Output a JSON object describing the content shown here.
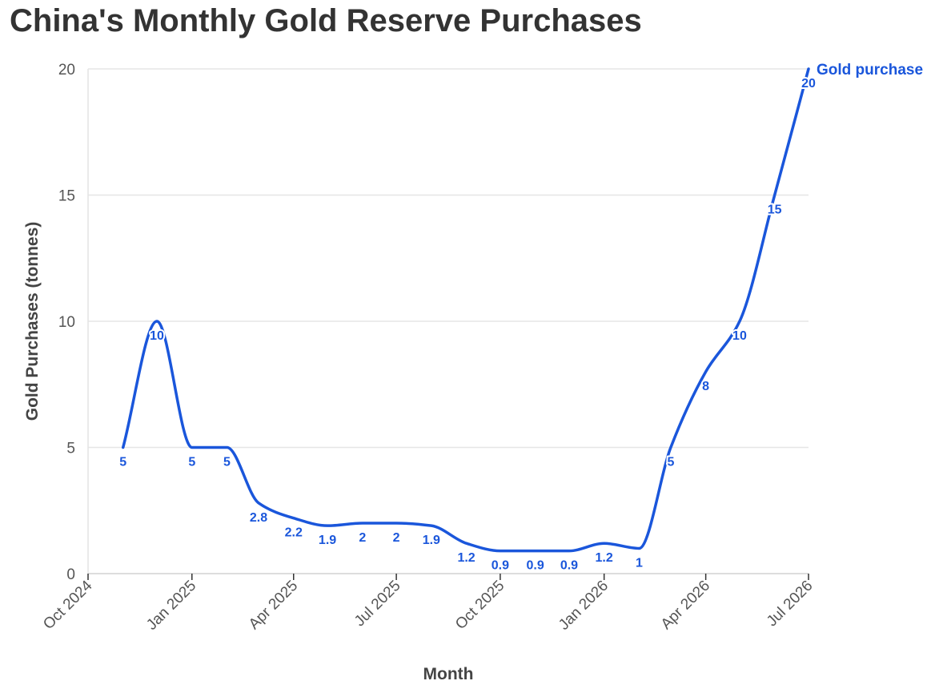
{
  "chart_data": {
    "type": "line",
    "title": "China's Monthly Gold Reserve Purchases",
    "xlabel": "Month",
    "ylabel": "Gold Purchases (tonnes)",
    "ylim": [
      0,
      20
    ],
    "xlim": [
      "2024-10-01",
      "2026-07-01"
    ],
    "yticks": [
      0,
      5,
      10,
      15,
      20
    ],
    "xticks": [
      {
        "date": "2024-10-01",
        "label": "Oct 2024"
      },
      {
        "date": "2025-01-01",
        "label": "Jan 2025"
      },
      {
        "date": "2025-04-01",
        "label": "Apr 2025"
      },
      {
        "date": "2025-07-01",
        "label": "Jul 2025"
      },
      {
        "date": "2025-10-01",
        "label": "Oct 2025"
      },
      {
        "date": "2026-01-01",
        "label": "Jan 2026"
      },
      {
        "date": "2026-04-01",
        "label": "Apr 2026"
      },
      {
        "date": "2026-07-01",
        "label": "Jul 2026"
      }
    ],
    "grid": true,
    "series": [
      {
        "name": "Gold purchase",
        "color": "#1a56db",
        "points": [
          {
            "x": "2024-11-01",
            "y": 5,
            "label": "5"
          },
          {
            "x": "2024-12-01",
            "y": 10,
            "label": "10"
          },
          {
            "x": "2025-01-01",
            "y": 5,
            "label": "5"
          },
          {
            "x": "2025-02-01",
            "y": 5,
            "label": "5"
          },
          {
            "x": "2025-03-01",
            "y": 2.8,
            "label": "2.8"
          },
          {
            "x": "2025-04-01",
            "y": 2.2,
            "label": "2.2"
          },
          {
            "x": "2025-05-01",
            "y": 1.9,
            "label": "1.9"
          },
          {
            "x": "2025-06-01",
            "y": 2,
            "label": "2"
          },
          {
            "x": "2025-07-01",
            "y": 2,
            "label": "2"
          },
          {
            "x": "2025-08-01",
            "y": 1.9,
            "label": "1.9"
          },
          {
            "x": "2025-09-01",
            "y": 1.2,
            "label": "1.2"
          },
          {
            "x": "2025-10-01",
            "y": 0.9,
            "label": "0.9"
          },
          {
            "x": "2025-11-01",
            "y": 0.9,
            "label": "0.9"
          },
          {
            "x": "2025-12-01",
            "y": 0.9,
            "label": "0.9"
          },
          {
            "x": "2026-01-01",
            "y": 1.2,
            "label": "1.2"
          },
          {
            "x": "2026-02-01",
            "y": 1,
            "label": "1"
          },
          {
            "x": "2026-03-01",
            "y": 5,
            "label": "5"
          },
          {
            "x": "2026-04-01",
            "y": 8,
            "label": "8"
          },
          {
            "x": "2026-05-01",
            "y": 10,
            "label": "10"
          },
          {
            "x": "2026-06-01",
            "y": 15,
            "label": "15"
          },
          {
            "x": "2026-07-01",
            "y": 20,
            "label": "20"
          }
        ]
      }
    ]
  }
}
